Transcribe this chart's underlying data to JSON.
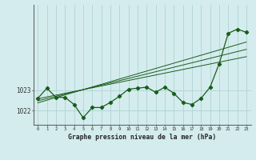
{
  "title": "Graphe pression niveau de la mer (hPa)",
  "background_color": "#d4ecee",
  "grid_color": "#b0d4d4",
  "line_color": "#1a5c1a",
  "x_ticks": [
    0,
    1,
    2,
    3,
    4,
    5,
    6,
    7,
    8,
    9,
    10,
    11,
    12,
    13,
    14,
    15,
    16,
    17,
    18,
    19,
    20,
    21,
    22,
    23
  ],
  "y_ticks": [
    1022,
    1023
  ],
  "ylim": [
    1021.3,
    1027.2
  ],
  "xlim": [
    -0.5,
    23.5
  ],
  "main_line": [
    1022.6,
    1023.1,
    1022.65,
    1022.65,
    1022.3,
    1021.65,
    1022.15,
    1022.15,
    1022.4,
    1022.7,
    1023.05,
    1023.1,
    1023.15,
    1022.9,
    1023.15,
    1022.85,
    1022.4,
    1022.3,
    1022.6,
    1023.15,
    1024.3,
    1025.8,
    1026.0,
    1025.85
  ],
  "trend_line1": [
    1022.58,
    1022.67,
    1022.76,
    1022.85,
    1022.94,
    1023.03,
    1023.12,
    1023.21,
    1023.3,
    1023.39,
    1023.48,
    1023.57,
    1023.66,
    1023.75,
    1023.84,
    1023.93,
    1024.02,
    1024.11,
    1024.2,
    1024.29,
    1024.38,
    1024.47,
    1024.56,
    1024.65
  ],
  "trend_line2": [
    1022.48,
    1022.59,
    1022.7,
    1022.81,
    1022.92,
    1023.03,
    1023.14,
    1023.25,
    1023.36,
    1023.47,
    1023.58,
    1023.69,
    1023.8,
    1023.91,
    1024.02,
    1024.13,
    1024.24,
    1024.35,
    1024.46,
    1024.57,
    1024.68,
    1024.79,
    1024.9,
    1025.01
  ],
  "trend_line3": [
    1022.38,
    1022.51,
    1022.64,
    1022.77,
    1022.9,
    1023.03,
    1023.16,
    1023.29,
    1023.42,
    1023.55,
    1023.68,
    1023.81,
    1023.94,
    1024.07,
    1024.2,
    1024.33,
    1024.46,
    1024.59,
    1024.72,
    1024.85,
    1024.98,
    1025.11,
    1025.24,
    1025.37
  ]
}
